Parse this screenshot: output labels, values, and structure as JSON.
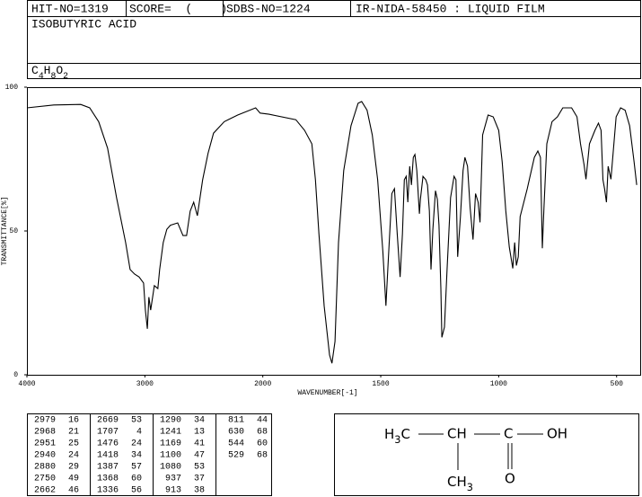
{
  "header": {
    "hit_no": "HIT-NO=1319",
    "score": "SCORE=  (    )",
    "sdbs_no": "SDBS-NO=1224",
    "ir": "IR-NIDA-58450 : LIQUID FILM"
  },
  "compound": "ISOBUTYRIC ACID",
  "formula": "C4H8O2",
  "chart_data": {
    "type": "line",
    "xlabel": "WAVENUMBER[-1]",
    "ylabel": "TRANSMITTANCE[%]",
    "xlim": [
      4000,
      400
    ],
    "x_scale_break": 2000,
    "xticks": [
      4000,
      3000,
      2000,
      1500,
      1000,
      500
    ],
    "ylim": [
      0,
      100
    ],
    "yticks": [
      0,
      50,
      100
    ],
    "color": "#000000",
    "x": [
      4000,
      3772,
      3544,
      3468,
      3392,
      3316,
      3240,
      3163,
      3125,
      3087,
      3049,
      3011,
      2996,
      2979,
      2966,
      2951,
      2920,
      2890,
      2875,
      2844,
      2814,
      2783,
      2722,
      2677,
      2646,
      2616,
      2586,
      2555,
      2510,
      2464,
      2418,
      2327,
      2213,
      2061,
      2023,
      1974,
      1860,
      1823,
      1792,
      1777,
      1762,
      1740,
      1717,
      1707,
      1694,
      1679,
      1657,
      1626,
      1596,
      1581,
      1558,
      1536,
      1513,
      1491,
      1478,
      1468,
      1453,
      1442,
      1430,
      1418,
      1408,
      1400,
      1392,
      1385,
      1377,
      1370,
      1362,
      1355,
      1347,
      1336,
      1332,
      1321,
      1309,
      1302,
      1294,
      1287,
      1279,
      1268,
      1260,
      1253,
      1245,
      1241,
      1230,
      1219,
      1204,
      1189,
      1181,
      1174,
      1162,
      1151,
      1143,
      1132,
      1121,
      1109,
      1098,
      1087,
      1079,
      1068,
      1045,
      1023,
      1000,
      985,
      970,
      955,
      940,
      932,
      925,
      917,
      909,
      879,
      849,
      834,
      823,
      815,
      808,
      796,
      774,
      751,
      728,
      691,
      668,
      653,
      638,
      630,
      615,
      592,
      577,
      566,
      558,
      551,
      543,
      536,
      524,
      502,
      483,
      464,
      445,
      426,
      415
    ],
    "values": [
      92.8,
      93.8,
      94,
      92.8,
      88,
      78.8,
      61.6,
      46,
      36.6,
      35,
      34,
      31.9,
      22.5,
      16,
      27,
      22.5,
      31,
      30,
      36.6,
      46,
      50.6,
      52,
      52.8,
      48.4,
      48.4,
      56.9,
      60,
      55.3,
      67.8,
      77,
      84,
      88,
      90.3,
      92.8,
      91,
      90.6,
      88.7,
      85,
      80.3,
      67.8,
      49,
      24,
      6.9,
      4,
      11.6,
      46,
      71,
      86.6,
      94.4,
      95,
      92,
      83.4,
      67.8,
      42.8,
      24,
      39.7,
      63,
      64.7,
      49,
      34,
      49,
      67.8,
      69,
      60,
      72.5,
      66,
      75.6,
      76.6,
      71,
      56,
      61,
      69,
      67.8,
      66,
      57,
      36.6,
      50.6,
      64,
      61,
      52,
      30,
      13,
      16.6,
      36.6,
      61.6,
      69,
      67.8,
      41,
      55,
      71,
      75.6,
      72.5,
      58,
      47,
      63,
      60,
      53,
      83.4,
      90.3,
      89.7,
      85,
      74,
      57,
      44.4,
      37,
      46,
      38,
      41,
      55,
      64.7,
      75.6,
      77.8,
      75.6,
      44,
      58,
      80.3,
      88,
      89.7,
      92.8,
      92.8,
      89.7,
      80.3,
      73,
      68,
      80.3,
      85,
      87.5,
      85,
      67.8,
      64.7,
      60,
      72.5,
      68,
      89.7,
      92.8,
      92,
      86.6,
      74,
      66
    ]
  },
  "peak_table": {
    "columns": [
      [
        [
          2979,
          16
        ],
        [
          2968,
          21
        ],
        [
          2951,
          25
        ],
        [
          2940,
          24
        ],
        [
          2880,
          29
        ],
        [
          2750,
          49
        ],
        [
          2662,
          46
        ]
      ],
      [
        [
          2669,
          53
        ],
        [
          1707,
          4
        ],
        [
          1476,
          24
        ],
        [
          1418,
          34
        ],
        [
          1387,
          57
        ],
        [
          1368,
          60
        ],
        [
          1336,
          56
        ]
      ],
      [
        [
          1290,
          34
        ],
        [
          1241,
          13
        ],
        [
          1169,
          41
        ],
        [
          1100,
          47
        ],
        [
          1080,
          53
        ],
        [
          937,
          37
        ],
        [
          913,
          38
        ]
      ],
      [
        [
          811,
          44
        ],
        [
          630,
          68
        ],
        [
          544,
          60
        ],
        [
          529,
          68
        ]
      ]
    ]
  },
  "structure": {
    "atoms": [
      "H3C",
      "CH",
      "C",
      "OH",
      "O",
      "CH3"
    ]
  }
}
